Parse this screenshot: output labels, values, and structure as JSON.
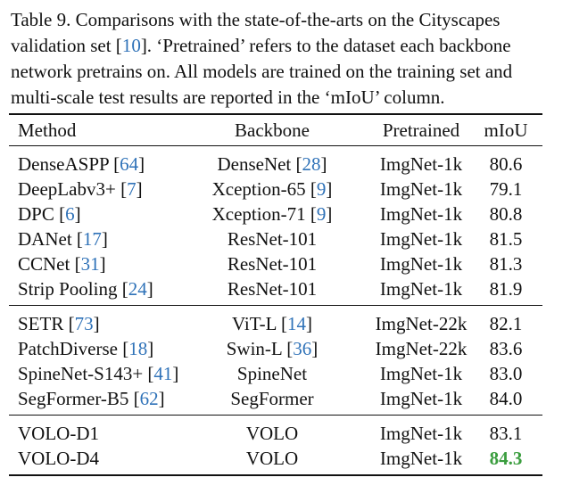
{
  "caption": {
    "lines": [
      [
        {
          "t": "Table 9. Comparisons with the state-of-the-arts on the Cityscapes"
        }
      ],
      [
        {
          "t": "validation set ["
        },
        {
          "t": "10",
          "cite": true
        },
        {
          "t": "].  ‘Pretrained’ refers to the dataset each backbone"
        }
      ],
      [
        {
          "t": "network pretrains on.  All models are trained on the training set and"
        }
      ],
      [
        {
          "t": "multi-scale test results are reported in the ‘mIoU’ column."
        }
      ]
    ]
  },
  "table": {
    "headers": {
      "method": "Method",
      "backbone": "Backbone",
      "pretrained": "Pretrained",
      "miou": "mIoU"
    },
    "groups": [
      [
        {
          "method": "DenseASPP",
          "method_ref": "64",
          "backbone": "DenseNet",
          "backbone_ref": "28",
          "pretrained": "ImgNet-1k",
          "miou": "80.6"
        },
        {
          "method": "DeepLabv3+",
          "method_ref": "7",
          "backbone": "Xception-65",
          "backbone_ref": "9",
          "pretrained": "ImgNet-1k",
          "miou": "79.1"
        },
        {
          "method": "DPC",
          "method_ref": "6",
          "backbone": "Xception-71",
          "backbone_ref": "9",
          "pretrained": "ImgNet-1k",
          "miou": "80.8"
        },
        {
          "method": "DANet",
          "method_ref": "17",
          "backbone": "ResNet-101",
          "backbone_ref": "",
          "pretrained": "ImgNet-1k",
          "miou": "81.5"
        },
        {
          "method": "CCNet",
          "method_ref": "31",
          "backbone": "ResNet-101",
          "backbone_ref": "",
          "pretrained": "ImgNet-1k",
          "miou": "81.3"
        },
        {
          "method": "Strip Pooling",
          "method_ref": "24",
          "backbone": "ResNet-101",
          "backbone_ref": "",
          "pretrained": "ImgNet-1k",
          "miou": "81.9"
        }
      ],
      [
        {
          "method": "SETR",
          "method_ref": "73",
          "backbone": "ViT-L",
          "backbone_ref": "14",
          "pretrained": "ImgNet-22k",
          "miou": "82.1"
        },
        {
          "method": "PatchDiverse",
          "method_ref": "18",
          "backbone": "Swin-L",
          "backbone_ref": "36",
          "pretrained": "ImgNet-22k",
          "miou": "83.6"
        },
        {
          "method": "SpineNet-S143+",
          "method_ref": "41",
          "backbone": "SpineNet",
          "backbone_ref": "",
          "pretrained": "ImgNet-1k",
          "miou": "83.0"
        },
        {
          "method": "SegFormer-B5",
          "method_ref": "62",
          "backbone": "SegFormer",
          "backbone_ref": "",
          "pretrained": "ImgNet-1k",
          "miou": "84.0"
        }
      ],
      [
        {
          "method": "VOLO-D1",
          "method_ref": "",
          "backbone": "VOLO",
          "backbone_ref": "",
          "pretrained": "ImgNet-1k",
          "miou": "83.1"
        },
        {
          "method": "VOLO-D4",
          "method_ref": "",
          "backbone": "VOLO",
          "backbone_ref": "",
          "pretrained": "ImgNet-1k",
          "miou": "84.3",
          "best": true
        }
      ]
    ]
  },
  "colors": {
    "citation": "#2f72b8",
    "best": "#3a9d3e"
  }
}
